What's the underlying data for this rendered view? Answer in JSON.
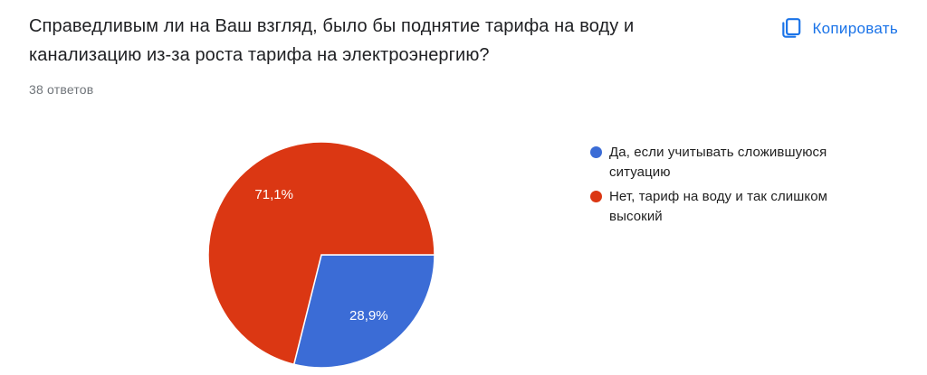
{
  "header": {
    "title": "Справедливым ли на Ваш взгляд, было бы поднятие тарифа на воду и канализацию из-за роста тарифа на электроэнергию?",
    "title_lines": [
      "Справедливым ли на Ваш взгляд, было бы поднятие тарифа на воду и",
      "канализацию из-за роста тарифа на электроэнергию?"
    ],
    "responses_count": "38 ответов",
    "copy_button": {
      "label": "Копировать",
      "color": "#1a73e8"
    }
  },
  "chart_data": {
    "type": "pie",
    "title": "Справедливым ли на Ваш взгляд, было бы поднятие тарифа на воду и канализацию из-за роста тарифа на электроэнергию?",
    "subtitle": "38 ответов",
    "total_responses": 38,
    "categories": [
      "Да, если учитывать сложившуюся ситуацию",
      "Нет, тариф на воду и так слишком высокий"
    ],
    "values": [
      28.9,
      71.1
    ],
    "labels": [
      "28,9%",
      "71,1%"
    ],
    "colors": [
      "#3b6cd6",
      "#db3713"
    ],
    "start_angle_deg": 0,
    "direction": "clockwise",
    "legend_position": "right",
    "slice_label_color": "#ffffff",
    "slice_border_color": "#ffffff"
  },
  "legend": {
    "items": [
      {
        "color": "#3b6cd6",
        "label": "Да, если учитывать сложившуюся ситуацию",
        "lines": [
          "Да, если учитывать сложившуюся",
          "ситуацию"
        ]
      },
      {
        "color": "#db3713",
        "label": "Нет, тариф на воду и так слишком высокий",
        "lines": [
          "Нет, тариф на воду и так слишком",
          "высокий"
        ]
      }
    ]
  }
}
